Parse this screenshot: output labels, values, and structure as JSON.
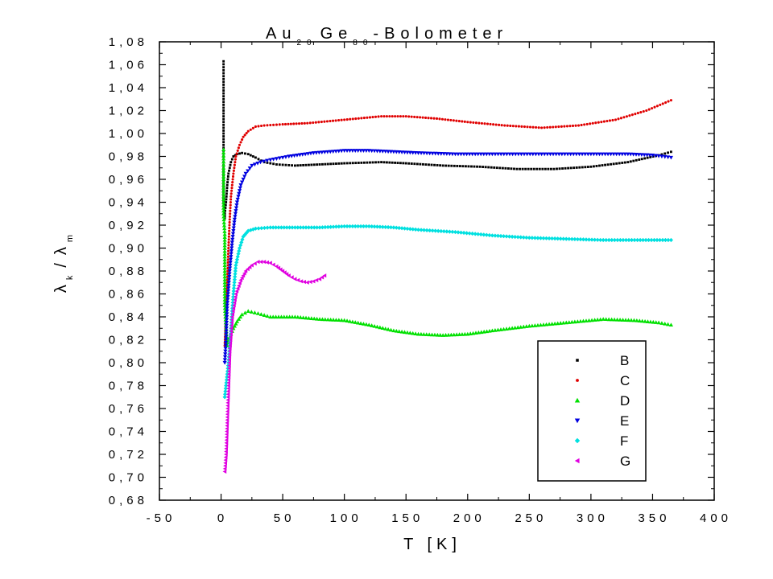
{
  "chart_data": {
    "type": "scatter",
    "title": "Au",
    "title_parts": {
      "el1": "Au",
      "sub1": "20",
      "el2": "Ge",
      "sub2": "80",
      "rest": "-Bolometer"
    },
    "xlabel": "T [K]",
    "ylabel": {
      "sym1": "λ",
      "sub1": "k",
      "slash": "/",
      "sym2": "λ",
      "sub2": "m"
    },
    "xlim": [
      -50,
      400
    ],
    "ylim": [
      0.68,
      1.08
    ],
    "x_ticks": [
      "-50",
      "0",
      "50",
      "100",
      "150",
      "200",
      "250",
      "300",
      "350",
      "400"
    ],
    "y_ticks": [
      "0,68",
      "0,70",
      "0,72",
      "0,74",
      "0,76",
      "0,78",
      "0,80",
      "0,82",
      "0,84",
      "0,86",
      "0,88",
      "0,90",
      "0,92",
      "0,94",
      "0,96",
      "0,98",
      "1,00",
      "1,02",
      "1,04",
      "1,06",
      "1,08"
    ],
    "grid": false,
    "legend_position": "bottom-right",
    "series": [
      {
        "name": "B",
        "color": "#000000",
        "marker": "square",
        "points": [
          [
            2,
            1.063
          ],
          [
            2,
            1.05
          ],
          [
            2,
            1.04
          ],
          [
            2,
            1.03
          ],
          [
            2,
            1.02
          ],
          [
            2,
            1.01
          ],
          [
            2,
            1.0
          ],
          [
            2,
            0.99
          ],
          [
            2,
            0.98
          ],
          [
            2,
            0.97
          ],
          [
            2,
            0.96
          ],
          [
            2,
            0.95
          ],
          [
            2,
            0.94
          ],
          [
            3,
            0.926
          ],
          [
            3,
            0.93
          ],
          [
            4,
            0.94
          ],
          [
            5,
            0.955
          ],
          [
            6,
            0.965
          ],
          [
            8,
            0.975
          ],
          [
            10,
            0.98
          ],
          [
            13,
            0.982
          ],
          [
            17,
            0.983
          ],
          [
            22,
            0.982
          ],
          [
            28,
            0.979
          ],
          [
            35,
            0.975
          ],
          [
            45,
            0.973
          ],
          [
            60,
            0.972
          ],
          [
            80,
            0.973
          ],
          [
            100,
            0.974
          ],
          [
            130,
            0.975
          ],
          [
            150,
            0.974
          ],
          [
            180,
            0.972
          ],
          [
            210,
            0.971
          ],
          [
            240,
            0.969
          ],
          [
            270,
            0.969
          ],
          [
            300,
            0.971
          ],
          [
            330,
            0.975
          ],
          [
            355,
            0.981
          ],
          [
            365,
            0.984
          ]
        ]
      },
      {
        "name": "C",
        "color": "#e00000",
        "marker": "circle",
        "points": [
          [
            3,
            0.815
          ],
          [
            4,
            0.84
          ],
          [
            5,
            0.87
          ],
          [
            6,
            0.9
          ],
          [
            7,
            0.925
          ],
          [
            8,
            0.945
          ],
          [
            10,
            0.965
          ],
          [
            12,
            0.98
          ],
          [
            15,
            0.99
          ],
          [
            18,
            0.997
          ],
          [
            22,
            1.002
          ],
          [
            28,
            1.006
          ],
          [
            35,
            1.007
          ],
          [
            50,
            1.008
          ],
          [
            70,
            1.009
          ],
          [
            100,
            1.012
          ],
          [
            130,
            1.015
          ],
          [
            150,
            1.015
          ],
          [
            175,
            1.013
          ],
          [
            200,
            1.01
          ],
          [
            230,
            1.007
          ],
          [
            260,
            1.005
          ],
          [
            290,
            1.007
          ],
          [
            320,
            1.012
          ],
          [
            345,
            1.02
          ],
          [
            365,
            1.029
          ]
        ]
      },
      {
        "name": "D",
        "color": "#00e000",
        "marker": "triangle-up",
        "points": [
          [
            2,
            0.986
          ],
          [
            2,
            0.97
          ],
          [
            2,
            0.95
          ],
          [
            2,
            0.93
          ],
          [
            3,
            0.912
          ],
          [
            3,
            0.89
          ],
          [
            3,
            0.87
          ],
          [
            3,
            0.85
          ],
          [
            4,
            0.83
          ],
          [
            5,
            0.815
          ],
          [
            6,
            0.82
          ],
          [
            8,
            0.825
          ],
          [
            10,
            0.83
          ],
          [
            13,
            0.836
          ],
          [
            17,
            0.842
          ],
          [
            22,
            0.845
          ],
          [
            30,
            0.843
          ],
          [
            40,
            0.84
          ],
          [
            60,
            0.84
          ],
          [
            80,
            0.838
          ],
          [
            100,
            0.837
          ],
          [
            120,
            0.833
          ],
          [
            140,
            0.828
          ],
          [
            160,
            0.825
          ],
          [
            180,
            0.824
          ],
          [
            200,
            0.825
          ],
          [
            220,
            0.828
          ],
          [
            250,
            0.832
          ],
          [
            280,
            0.835
          ],
          [
            310,
            0.838
          ],
          [
            335,
            0.837
          ],
          [
            355,
            0.835
          ],
          [
            365,
            0.833
          ]
        ]
      },
      {
        "name": "E",
        "color": "#0000e0",
        "marker": "triangle-down",
        "points": [
          [
            3,
            0.8
          ],
          [
            4,
            0.82
          ],
          [
            5,
            0.85
          ],
          [
            7,
            0.88
          ],
          [
            9,
            0.905
          ],
          [
            11,
            0.925
          ],
          [
            13,
            0.94
          ],
          [
            16,
            0.955
          ],
          [
            20,
            0.965
          ],
          [
            25,
            0.972
          ],
          [
            32,
            0.975
          ],
          [
            40,
            0.977
          ],
          [
            55,
            0.98
          ],
          [
            75,
            0.983
          ],
          [
            100,
            0.985
          ],
          [
            120,
            0.985
          ],
          [
            140,
            0.984
          ],
          [
            160,
            0.983
          ],
          [
            190,
            0.982
          ],
          [
            220,
            0.982
          ],
          [
            260,
            0.982
          ],
          [
            300,
            0.982
          ],
          [
            330,
            0.982
          ],
          [
            350,
            0.981
          ],
          [
            365,
            0.979
          ]
        ]
      },
      {
        "name": "F",
        "color": "#00e0e0",
        "marker": "diamond",
        "points": [
          [
            3,
            0.77
          ],
          [
            4,
            0.78
          ],
          [
            6,
            0.8
          ],
          [
            8,
            0.83
          ],
          [
            10,
            0.86
          ],
          [
            12,
            0.885
          ],
          [
            15,
            0.9
          ],
          [
            18,
            0.91
          ],
          [
            22,
            0.915
          ],
          [
            28,
            0.917
          ],
          [
            40,
            0.918
          ],
          [
            60,
            0.918
          ],
          [
            80,
            0.918
          ],
          [
            100,
            0.919
          ],
          [
            120,
            0.919
          ],
          [
            140,
            0.918
          ],
          [
            160,
            0.916
          ],
          [
            190,
            0.914
          ],
          [
            220,
            0.911
          ],
          [
            250,
            0.909
          ],
          [
            280,
            0.908
          ],
          [
            310,
            0.907
          ],
          [
            340,
            0.907
          ],
          [
            365,
            0.907
          ]
        ]
      },
      {
        "name": "G",
        "color": "#e000e0",
        "marker": "triangle-left",
        "points": [
          [
            3,
            0.705
          ],
          [
            4,
            0.72
          ],
          [
            5,
            0.75
          ],
          [
            6,
            0.78
          ],
          [
            7,
            0.81
          ],
          [
            9,
            0.84
          ],
          [
            12,
            0.86
          ],
          [
            16,
            0.872
          ],
          [
            20,
            0.88
          ],
          [
            25,
            0.885
          ],
          [
            30,
            0.888
          ],
          [
            35,
            0.888
          ],
          [
            40,
            0.887
          ],
          [
            45,
            0.884
          ],
          [
            50,
            0.88
          ],
          [
            55,
            0.876
          ],
          [
            60,
            0.873
          ],
          [
            65,
            0.871
          ],
          [
            70,
            0.87
          ],
          [
            75,
            0.871
          ],
          [
            80,
            0.873
          ],
          [
            84,
            0.876
          ]
        ]
      }
    ]
  }
}
